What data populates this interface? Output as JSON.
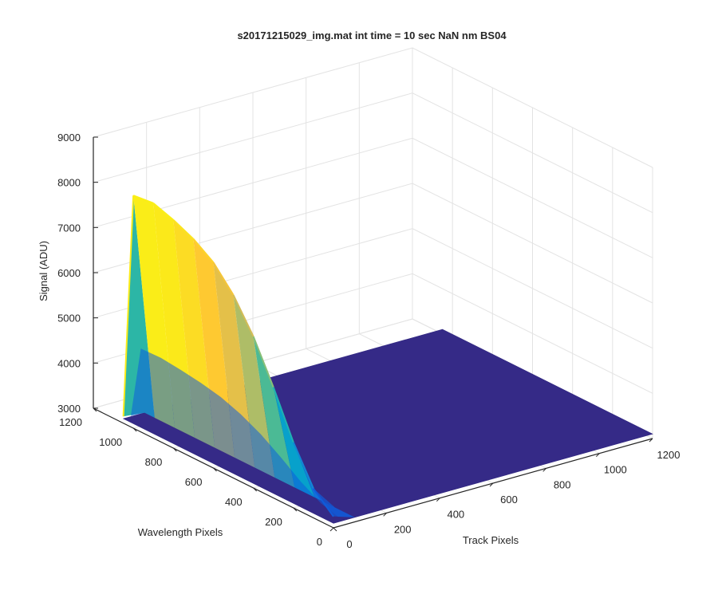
{
  "chart_data": {
    "type": "surface",
    "title": "s20171215029_img.mat int time = 10 sec  NaN nm BS04",
    "xlabel": "Track Pixels",
    "ylabel": "Wavelength Pixels",
    "zlabel": "Signal (ADU)",
    "xlim": [
      0,
      1200
    ],
    "ylim": [
      0,
      1200
    ],
    "zlim": [
      3000,
      9000
    ],
    "xticks": [
      "0",
      "200",
      "400",
      "600",
      "800",
      "1000",
      "1200"
    ],
    "yticks": [
      "0",
      "200",
      "400",
      "600",
      "800",
      "1000",
      "1200"
    ],
    "zticks": [
      "3000",
      "4000",
      "5000",
      "6000",
      "7000",
      "8000",
      "9000"
    ],
    "grid": true,
    "colormap": [
      "#352a87",
      "#0f5cdd",
      "#1481d6",
      "#06a4ca",
      "#2eb7a4",
      "#87bf77",
      "#d1bb59",
      "#fec832",
      "#f9fb0e"
    ],
    "series": [
      {
        "x_track_range": [
          0,
          80
        ],
        "wavelength": [
          0,
          100,
          200,
          300,
          400,
          500,
          600,
          700,
          800,
          900,
          1000,
          1050
        ],
        "peak_signal": [
          3250,
          3650,
          4450,
          5450,
          6350,
          7050,
          7550,
          7850,
          8050,
          8200,
          8150,
          3150
        ],
        "baseline_signal": 3100
      }
    ]
  }
}
